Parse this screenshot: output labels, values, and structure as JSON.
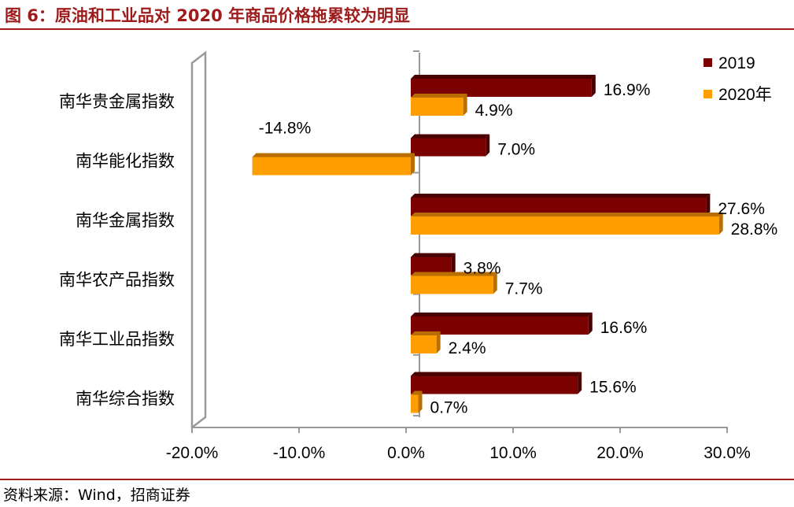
{
  "figure": {
    "title": "图 6：原油和工业品对 2020 年商品价格拖累较为明显",
    "source": "资料来源：Wind，招商证券"
  },
  "colors": {
    "series_2019": "#7b0000",
    "series_2019_side": "#4a0000",
    "series_2020": "#ff9e00",
    "series_2020_side": "#b86e00",
    "accent": "#9e1b1b",
    "axis": "#999999"
  },
  "chart_data": {
    "type": "bar",
    "orientation": "horizontal",
    "categories": [
      "南华贵金属指数",
      "南华能化指数",
      "南华金属指数",
      "南华农产品指数",
      "南华工业品指数",
      "南华综合指数"
    ],
    "series": [
      {
        "name": "2019",
        "values": [
          16.9,
          7.0,
          27.6,
          3.8,
          16.6,
          15.6
        ],
        "labels": [
          "16.9%",
          "7.0%",
          "27.6%",
          "3.8%",
          "16.6%",
          "15.6%"
        ]
      },
      {
        "name": "2020年",
        "values": [
          4.9,
          -14.8,
          28.8,
          7.7,
          2.4,
          0.7
        ],
        "labels": [
          "4.9%",
          "-14.8%",
          "28.8%",
          "7.7%",
          "2.4%",
          "0.7%"
        ]
      }
    ],
    "xlim": [
      -20,
      30
    ],
    "ticks": [
      -20,
      -10,
      0,
      10,
      20,
      30
    ],
    "tick_labels": [
      "-20.0%",
      "-10.0%",
      "0.0%",
      "10.0%",
      "20.0%",
      "30.0%"
    ],
    "legend_position": "top-right",
    "grid": false
  }
}
